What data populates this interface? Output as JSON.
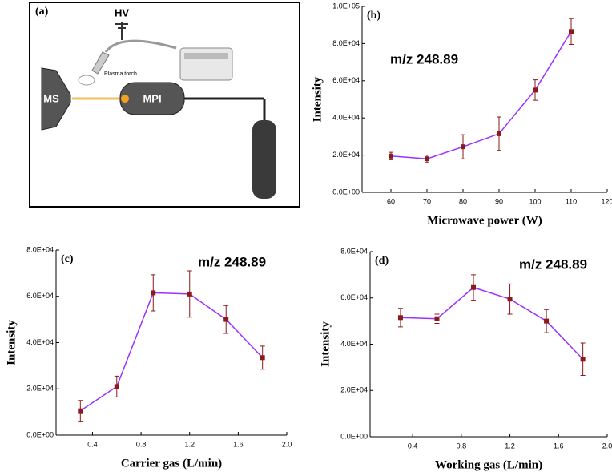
{
  "diagram": {
    "label": "(a)",
    "hv": "HV",
    "ms": "MS",
    "mpi": "MPI",
    "torch": "Plasma torch"
  },
  "chart_data": [
    {
      "type": "line",
      "label": "(b)",
      "annotation": "m/z 248.89",
      "xlabel": "Microwave power (W)",
      "ylabel": "Intensity",
      "x": [
        60,
        70,
        80,
        90,
        100,
        110
      ],
      "series": [
        {
          "color": "#9b30ff",
          "marker_color": "#8b1a1a",
          "values": [
            19500,
            18000,
            24500,
            31500,
            55000,
            86500
          ],
          "errors": [
            2000,
            2000,
            6500,
            9000,
            5500,
            7000
          ]
        }
      ],
      "xlim": [
        52,
        120
      ],
      "xticks": [
        60,
        70,
        80,
        90,
        100,
        110,
        120
      ],
      "ylim": [
        0,
        100000
      ],
      "yticks": [
        {
          "value": 0,
          "label": "0.0E+00"
        },
        {
          "value": 20000,
          "label": "2.0E+04"
        },
        {
          "value": 40000,
          "label": "4.0E+04"
        },
        {
          "value": 60000,
          "label": "6.0E+04"
        },
        {
          "value": 80000,
          "label": "8.0E+04"
        },
        {
          "value": 100000,
          "label": "1.0E+05"
        }
      ]
    },
    {
      "type": "line",
      "label": "(c)",
      "annotation": "m/z 248.89",
      "xlabel": "Carrier gas (L/min)",
      "ylabel": "Intensity",
      "x": [
        0.3,
        0.6,
        0.9,
        1.2,
        1.5,
        1.8
      ],
      "series": [
        {
          "color": "#9b30ff",
          "marker_color": "#8b1a1a",
          "values": [
            10500,
            21000,
            61500,
            61000,
            50000,
            33500
          ],
          "errors": [
            4500,
            4500,
            7800,
            10000,
            6000,
            5000
          ]
        }
      ],
      "xlim": [
        0.1,
        2.0
      ],
      "xticks": [
        0.4,
        0.8,
        1.2,
        1.6,
        {
          "value": 2,
          "label": "2.0"
        }
      ],
      "ylim": [
        0,
        80000
      ],
      "yticks": [
        {
          "value": 0,
          "label": "0.0E+00"
        },
        {
          "value": 20000,
          "label": "2.0E+04"
        },
        {
          "value": 40000,
          "label": "4.0E+04"
        },
        {
          "value": 60000,
          "label": "6.0E+04"
        },
        {
          "value": 80000,
          "label": "8.0E+04"
        }
      ]
    },
    {
      "type": "line",
      "label": "(d)",
      "annotation": "m/z 248.89",
      "xlabel": "Working gas (L/min)",
      "ylabel": "Intensity",
      "x": [
        0.3,
        0.6,
        0.9,
        1.2,
        1.5,
        1.8
      ],
      "series": [
        {
          "color": "#9b30ff",
          "marker_color": "#8b1a1a",
          "values": [
            51500,
            51000,
            64500,
            59500,
            50000,
            33500
          ],
          "errors": [
            4000,
            2000,
            5500,
            6500,
            5000,
            7000
          ]
        }
      ],
      "xlim": [
        0.05,
        2.0
      ],
      "xticks": [
        0.4,
        0.8,
        1.2,
        1.6,
        {
          "value": 2,
          "label": "2.0"
        }
      ],
      "ylim": [
        0,
        80000
      ],
      "yticks": [
        {
          "value": 0,
          "label": "0.0E+00"
        },
        {
          "value": 20000,
          "label": "2.0E+04"
        },
        {
          "value": 40000,
          "label": "4.0E+04"
        },
        {
          "value": 60000,
          "label": "6.0E+04"
        },
        {
          "value": 80000,
          "label": "8.0E+04"
        }
      ]
    }
  ]
}
